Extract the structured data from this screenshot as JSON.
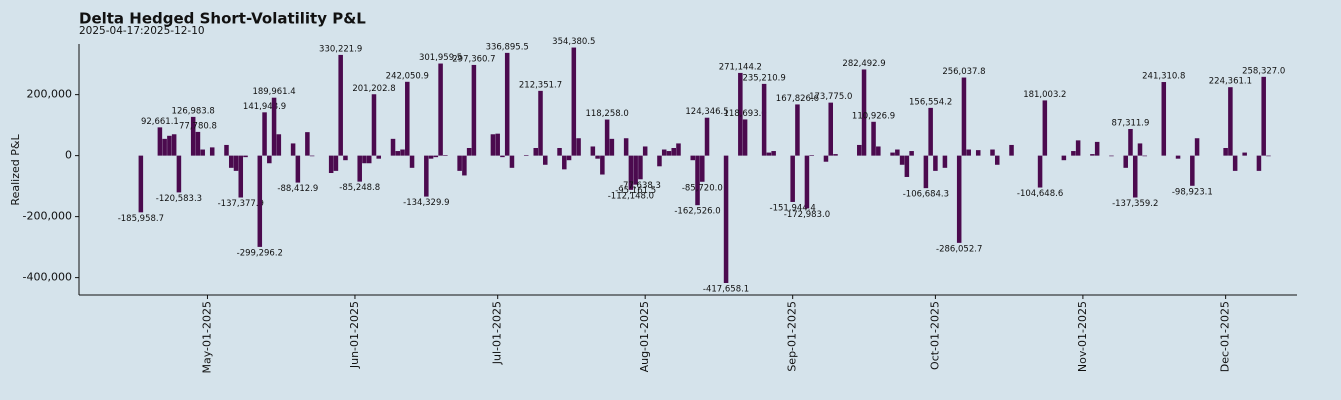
{
  "chart_data": {
    "type": "bar",
    "title": "Delta Hedged Short-Volatility P&L",
    "subtitle": "2025-04-17:2025-12-10",
    "y_label": "Realized P&L",
    "color": "#4b0a4e",
    "grid": false,
    "xlim": [
      "2025-04-04",
      "2025-12-16"
    ],
    "xticks": [
      {
        "value": "2025-05-01",
        "label": "May-01-2025"
      },
      {
        "value": "2025-06-01",
        "label": "Jun-01-2025"
      },
      {
        "value": "2025-07-01",
        "label": "Jul-01-2025"
      },
      {
        "value": "2025-08-01",
        "label": "Aug-01-2025"
      },
      {
        "value": "2025-09-01",
        "label": "Sep-01-2025"
      },
      {
        "value": "2025-10-01",
        "label": "Oct-01-2025"
      },
      {
        "value": "2025-11-01",
        "label": "Nov-01-2025"
      },
      {
        "value": "2025-12-01",
        "label": "Dec-01-2025"
      }
    ],
    "ylim": [
      -457000,
      366000
    ],
    "yticks": [
      {
        "value": -400000,
        "label": "-400,000"
      },
      {
        "value": -200000,
        "label": "-200,000"
      },
      0,
      {
        "value": 200000,
        "label": "200,000"
      }
    ],
    "x": [
      "2025-04-17",
      "2025-04-21",
      "2025-04-22",
      "2025-04-23",
      "2025-04-24",
      "2025-04-25",
      "2025-04-28",
      "2025-04-29",
      "2025-04-30",
      "2025-05-02",
      "2025-05-05",
      "2025-05-06",
      "2025-05-07",
      "2025-05-08",
      "2025-05-09",
      "2025-05-12",
      "2025-05-13",
      "2025-05-14",
      "2025-05-15",
      "2025-05-16",
      "2025-05-19",
      "2025-05-20",
      "2025-05-22",
      "2025-05-23",
      "2025-05-27",
      "2025-05-28",
      "2025-05-29",
      "2025-05-30",
      "2025-06-02",
      "2025-06-03",
      "2025-06-04",
      "2025-06-05",
      "2025-06-06",
      "2025-06-09",
      "2025-06-10",
      "2025-06-11",
      "2025-06-12",
      "2025-06-13",
      "2025-06-16",
      "2025-06-17",
      "2025-06-18",
      "2025-06-19",
      "2025-06-20",
      "2025-06-23",
      "2025-06-24",
      "2025-06-25",
      "2025-06-26",
      "2025-06-30",
      "2025-07-01",
      "2025-07-02",
      "2025-07-03",
      "2025-07-04",
      "2025-07-07",
      "2025-07-09",
      "2025-07-10",
      "2025-07-11",
      "2025-07-14",
      "2025-07-15",
      "2025-07-16",
      "2025-07-17",
      "2025-07-18",
      "2025-07-21",
      "2025-07-22",
      "2025-07-23",
      "2025-07-24",
      "2025-07-25",
      "2025-07-28",
      "2025-07-29",
      "2025-07-30",
      "2025-07-31",
      "2025-08-01",
      "2025-08-04",
      "2025-08-05",
      "2025-08-06",
      "2025-08-07",
      "2025-08-08",
      "2025-08-11",
      "2025-08-12",
      "2025-08-13",
      "2025-08-14",
      "2025-08-18",
      "2025-08-21",
      "2025-08-22",
      "2025-08-26",
      "2025-08-27",
      "2025-08-28",
      "2025-09-01",
      "2025-09-02",
      "2025-09-04",
      "2025-09-05",
      "2025-09-08",
      "2025-09-09",
      "2025-09-10",
      "2025-09-15",
      "2025-09-16",
      "2025-09-18",
      "2025-09-19",
      "2025-09-22",
      "2025-09-23",
      "2025-09-24",
      "2025-09-25",
      "2025-09-26",
      "2025-09-29",
      "2025-09-30",
      "2025-10-01",
      "2025-10-03",
      "2025-10-06",
      "2025-10-07",
      "2025-10-08",
      "2025-10-10",
      "2025-10-13",
      "2025-10-14",
      "2025-10-17",
      "2025-10-23",
      "2025-10-24",
      "2025-10-28",
      "2025-10-30",
      "2025-10-31",
      "2025-11-03",
      "2025-11-04",
      "2025-11-07",
      "2025-11-10",
      "2025-11-11",
      "2025-11-12",
      "2025-11-13",
      "2025-11-14",
      "2025-11-18",
      "2025-11-21",
      "2025-11-24",
      "2025-11-25",
      "2025-12-01",
      "2025-12-02",
      "2025-12-03",
      "2025-12-05",
      "2025-12-08",
      "2025-12-09",
      "2025-12-10"
    ],
    "values": [
      -185958.7,
      92661.1,
      55000,
      65000,
      70000,
      -120583.3,
      126983.8,
      77780.8,
      20000,
      27000,
      35000,
      -40000,
      -50000,
      -137377.9,
      -5000,
      -299296.2,
      141948.9,
      -25000,
      189961.4,
      70000,
      40000,
      -88412.9,
      77000,
      -2000,
      -57000,
      -50000,
      330221.9,
      -15000,
      -85248.8,
      -25000,
      -25000,
      201202.8,
      -10000,
      55000,
      15000,
      20000,
      242050.9,
      -40000,
      -134329.9,
      -10000,
      -5000,
      301959.5,
      2000,
      -50000,
      -65000,
      25000,
      297360.7,
      70000,
      72000,
      -5000,
      336895.5,
      -40000,
      2000,
      25000,
      212351.7,
      -30000,
      25000,
      -45000,
      -15000,
      354380.5,
      57000,
      30000,
      -10000,
      -62000,
      118258.0,
      55000,
      57000,
      -112148.0,
      -95161.5,
      -77638.3,
      30000,
      -35000,
      20000,
      15000,
      25000,
      40000,
      -15000,
      -162526.0,
      -85720.0,
      124346.5,
      -417658.1,
      271144.2,
      118693.0,
      235210.9,
      10000,
      15000,
      -151944.4,
      167826.6,
      -172983.0,
      2000,
      -20000,
      173775.0,
      5000,
      35000,
      282492.9,
      110926.9,
      30000,
      10000,
      20000,
      -30000,
      -70000,
      15000,
      -106684.3,
      156554.2,
      -50000,
      -40000,
      -286052.7,
      256037.8,
      20000,
      18000,
      20000,
      -30000,
      35000,
      -104648.6,
      181003.2,
      -15000,
      15000,
      50000,
      5000,
      45000,
      -2000,
      -40000,
      87311.9,
      -137359.2,
      40000,
      -2000,
      241310.8,
      -10000,
      -98923.1,
      57000,
      25000,
      224361.1,
      -50000,
      10000,
      -50000,
      258327.0,
      -2000
    ],
    "value_labels": [
      "-185,958.7",
      "92,661.1",
      null,
      null,
      null,
      "-120,583.3",
      "126,983.8",
      "77,780.8",
      null,
      null,
      null,
      null,
      null,
      "-137,377.9",
      null,
      "-299,296.2",
      "141,948.9",
      null,
      "189,961.4",
      null,
      null,
      "-88,412.9",
      null,
      null,
      null,
      null,
      "330,221.9",
      null,
      "-85,248.8",
      null,
      null,
      "201,202.8",
      null,
      null,
      null,
      null,
      "242,050.9",
      null,
      "-134,329.9",
      null,
      null,
      "301,959.5",
      null,
      null,
      null,
      null,
      "297,360.7",
      null,
      null,
      null,
      "336,895.5",
      null,
      null,
      null,
      "212,351.7",
      null,
      null,
      null,
      null,
      "354,380.5",
      null,
      null,
      null,
      null,
      "118,258.0",
      null,
      null,
      "-112,148.0",
      "-95,161.5",
      "-77,638.3",
      null,
      null,
      null,
      null,
      null,
      null,
      null,
      "-162,526.0",
      "-85,720.0",
      "124,346.5",
      "-417,658.1",
      "271,144.2",
      "118,693.0",
      "235,210.9",
      null,
      null,
      "-151,944.4",
      "167,826.6",
      "-172,983.0",
      null,
      null,
      "173,775.0",
      null,
      null,
      "282,492.9",
      "110,926.9",
      null,
      null,
      null,
      null,
      null,
      null,
      "-106,684.3",
      "156,554.2",
      null,
      null,
      "-286,052.7",
      "256,037.8",
      null,
      null,
      null,
      null,
      null,
      "-104,648.6",
      "181,003.2",
      null,
      null,
      null,
      null,
      null,
      null,
      null,
      "87,311.9",
      "-137,359.2",
      null,
      null,
      "241,310.8",
      null,
      "-98,923.1",
      null,
      null,
      "224,361.1",
      null,
      null,
      null,
      "258,327.0",
      null
    ]
  }
}
